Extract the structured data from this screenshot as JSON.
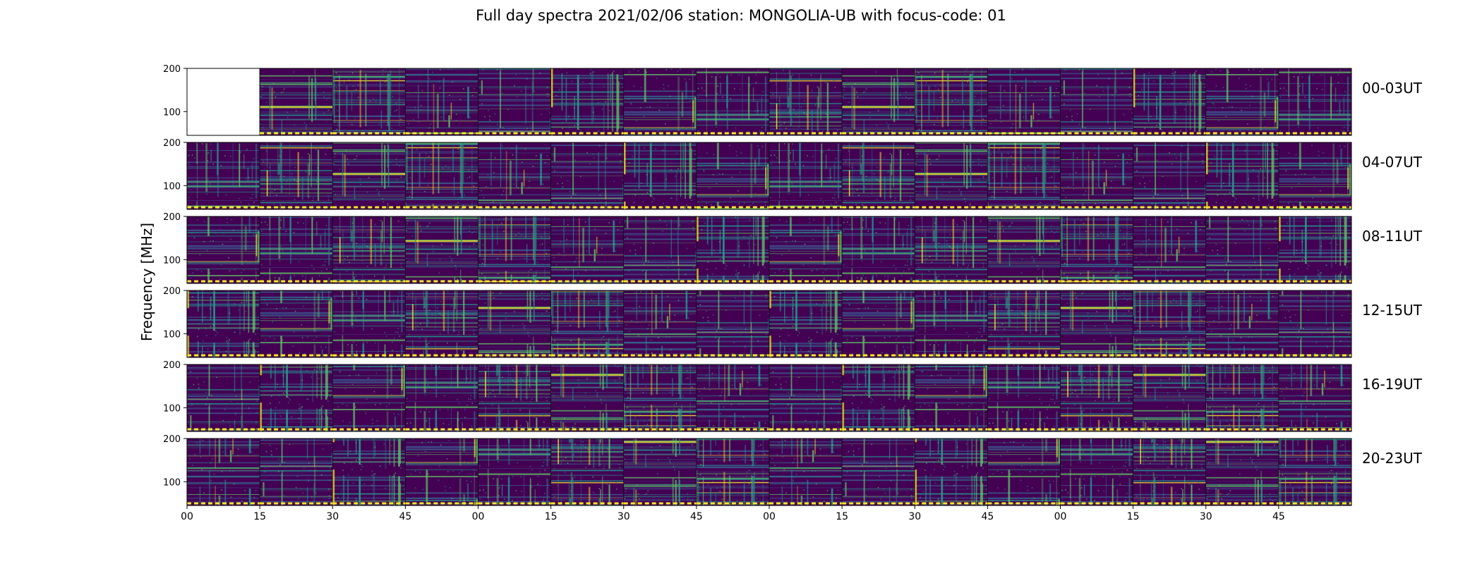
{
  "title": "Full day spectra 2021/02/06 station: MONGOLIA-UB with focus-code: 01",
  "chart_data": {
    "type": "heatmap",
    "title": "Full day spectra 2021/02/06 station: MONGOLIA-UB with focus-code: 01",
    "ylabel": "Frequency [MHz]",
    "xlabel": "",
    "colormap": "viridis",
    "ylim": [
      45,
      200
    ],
    "y_ticks": [
      100,
      200
    ],
    "x_tick_labels": [
      "00",
      "15",
      "30",
      "45",
      "00",
      "15",
      "30",
      "45",
      "00",
      "15",
      "30",
      "45",
      "00",
      "15",
      "30",
      "45"
    ],
    "panels_per_row": 16,
    "minutes_per_panel": 15,
    "rows": [
      {
        "label": "00-03UT",
        "missing_panels": [
          0
        ]
      },
      {
        "label": "04-07UT",
        "missing_panels": []
      },
      {
        "label": "08-11UT",
        "missing_panels": []
      },
      {
        "label": "12-15UT",
        "missing_panels": []
      },
      {
        "label": "16-19UT",
        "missing_panels": []
      },
      {
        "label": "20-23UT",
        "missing_panels": []
      }
    ],
    "bottom_marker_color": "#fde725",
    "colors": [
      "#440154",
      "#3b528b",
      "#21918c",
      "#5ec962",
      "#fde725"
    ]
  }
}
